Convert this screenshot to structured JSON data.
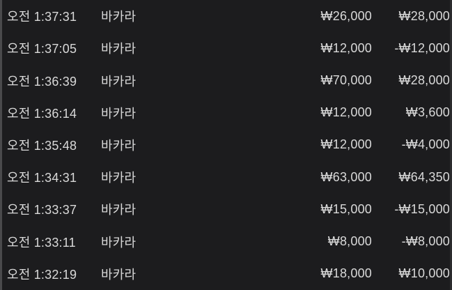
{
  "colors": {
    "background": "#1c1c1e",
    "text": "#d9d9d9",
    "left_edge_strip": "#4a4a4c",
    "right_edge_strip": "#2c2c2e"
  },
  "table": {
    "columns": [
      "time",
      "game",
      "bet_amount",
      "result_amount"
    ],
    "rows": [
      {
        "time": "오전 1:37:31",
        "game": "바카라",
        "bet": "₩26,000",
        "result": "₩28,000"
      },
      {
        "time": "오전 1:37:05",
        "game": "바카라",
        "bet": "₩12,000",
        "result": "-₩12,000"
      },
      {
        "time": "오전 1:36:39",
        "game": "바카라",
        "bet": "₩70,000",
        "result": "₩28,000"
      },
      {
        "time": "오전 1:36:14",
        "game": "바카라",
        "bet": "₩12,000",
        "result": "₩3,600"
      },
      {
        "time": "오전 1:35:48",
        "game": "바카라",
        "bet": "₩12,000",
        "result": "-₩4,000"
      },
      {
        "time": "오전 1:34:31",
        "game": "바카라",
        "bet": "₩63,000",
        "result": "₩64,350"
      },
      {
        "time": "오전 1:33:37",
        "game": "바카라",
        "bet": "₩15,000",
        "result": "-₩15,000"
      },
      {
        "time": "오전 1:33:11",
        "game": "바카라",
        "bet": "₩8,000",
        "result": "-₩8,000"
      },
      {
        "time": "오전 1:32:19",
        "game": "바카라",
        "bet": "₩18,000",
        "result": "₩10,000"
      }
    ]
  }
}
